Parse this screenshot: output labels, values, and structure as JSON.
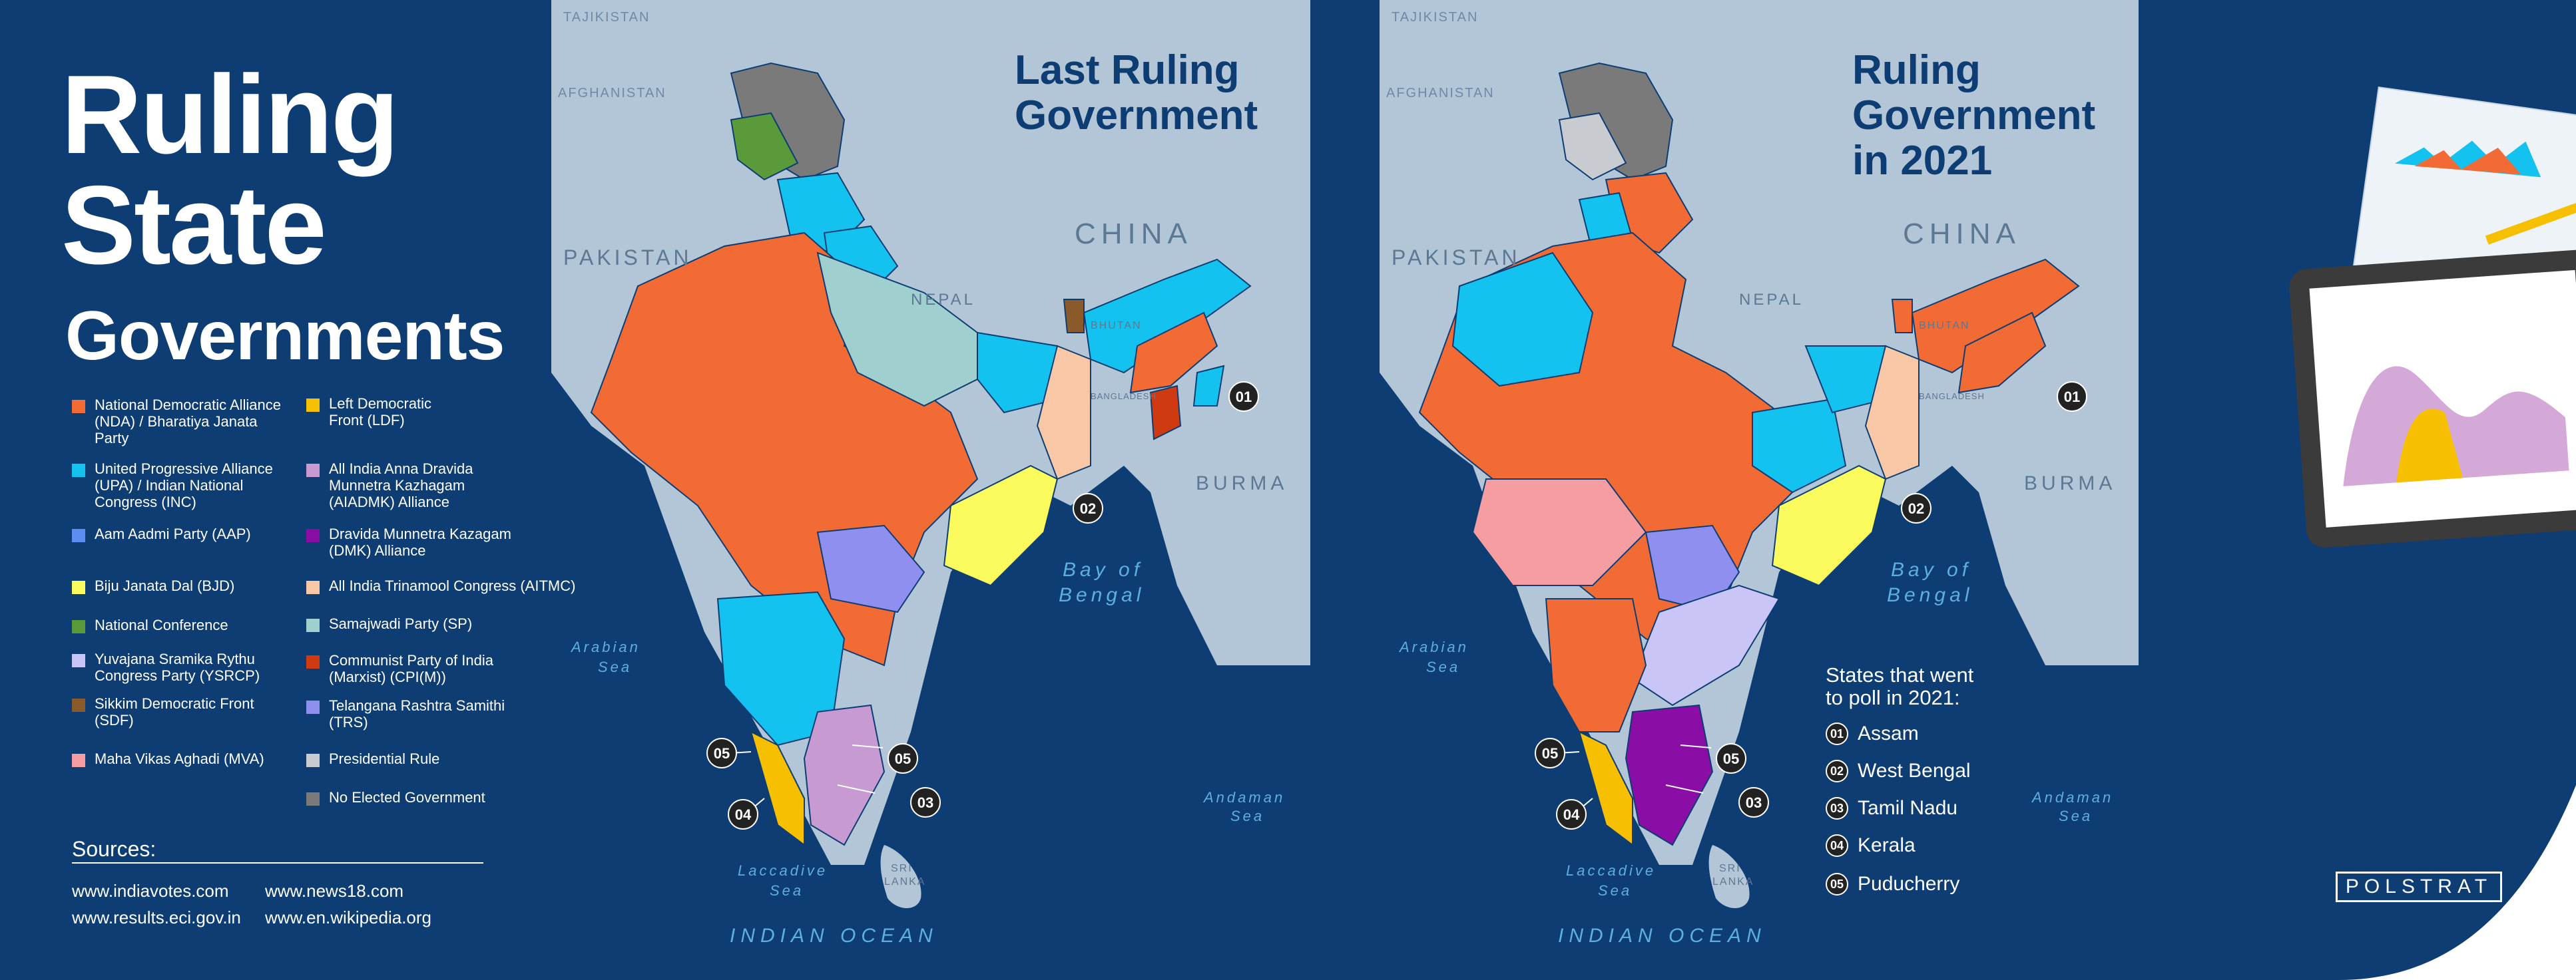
{
  "header": {
    "title_line1": "Ruling",
    "title_line2": "State",
    "title_line3": "Governments"
  },
  "legend": [
    {
      "label": "National Democratic Alliance (NDA) / Bharatiya Janata Party",
      "color": "#f26a34"
    },
    {
      "label": "United Progressive Alliance (UPA) / Indian National Congress (INC)",
      "color": "#14c2f0"
    },
    {
      "label": "Aam Aadmi Party (AAP)",
      "color": "#5c8df0"
    },
    {
      "label": "Biju Janata Dal (BJD)",
      "color": "#fbfb5e"
    },
    {
      "label": "National Conference",
      "color": "#5b9a3a"
    },
    {
      "label": "Yuvajana Sramika Rythu Congress Party (YSRCP)",
      "color": "#c9c6f7"
    },
    {
      "label": "Sikkim Democratic Front (SDF)",
      "color": "#8b5a2b"
    },
    {
      "label": "Maha Vikas Aghadi (MVA)",
      "color": "#f59da0"
    },
    {
      "label": "Left Democratic Front (LDF)",
      "color": "#f6c000"
    },
    {
      "label": "All India Anna Dravida Munnetra Kazhagam (AIADMK) Alliance",
      "color": "#c79ad1"
    },
    {
      "label": "Dravida Munnetra Kazagam (DMK) Alliance",
      "color": "#8a0ea6"
    },
    {
      "label": "All India Trinamool Congress (AITMC)",
      "color": "#f8c8a6"
    },
    {
      "label": "Samajwadi Party (SP)",
      "color": "#9fcfcf"
    },
    {
      "label": "Communist Party of India (Marxist) (CPI(M))",
      "color": "#d03a10"
    },
    {
      "label": "Telangana Rashtra Samithi (TRS)",
      "color": "#8f8ff0"
    },
    {
      "label": "Presidential Rule",
      "color": "#c8ccd0"
    },
    {
      "label": "No Elected Government",
      "color": "#7a7a7a"
    }
  ],
  "sources": {
    "title": "Sources:",
    "links": [
      "www.indiavotes.com",
      "www.news18.com",
      "www.results.eci.gov.in",
      "www.en.wikipedia.org"
    ]
  },
  "map_labels": {
    "tajikistan": "TAJIKISTAN",
    "afghanistan": "AFGHANISTAN",
    "pakistan": "PAKISTAN",
    "china": "CHINA",
    "nepal": "NEPAL",
    "bhutan": "BHUTAN",
    "bangladesh": "BANGLADESH",
    "burma": "BURMA",
    "bay_line1": "Bay of",
    "bay_line2": "Bengal",
    "arabian_line1": "Arabian",
    "arabian_line2": "Sea",
    "andaman_line1": "Andaman",
    "andaman_line2": "Sea",
    "laccadive_line1": "Laccadive",
    "laccadive_line2": "Sea",
    "sri_lanka_line1": "SRI",
    "sri_lanka_line2": "LANKA",
    "indian_ocean": "INDIAN    OCEAN"
  },
  "map_left": {
    "title_line1": "Last Ruling",
    "title_line2": "Government"
  },
  "map_right": {
    "title_line1": "Ruling",
    "title_line2": "Government",
    "title_line3": "in 2021"
  },
  "markers": [
    "01",
    "02",
    "03",
    "04",
    "05"
  ],
  "states_polled": {
    "title_line1": "States that went",
    "title_line2": "to poll in 2021:",
    "items": [
      {
        "num": "01",
        "name": "Assam"
      },
      {
        "num": "02",
        "name": "West Bengal"
      },
      {
        "num": "03",
        "name": "Tamil Nadu"
      },
      {
        "num": "04",
        "name": "Kerala"
      },
      {
        "num": "05",
        "name": "Puducherry"
      }
    ]
  },
  "branding": {
    "logo": "POLSTRAT",
    "accent": "#0d3d72",
    "map_land": "#b3c6d8"
  }
}
